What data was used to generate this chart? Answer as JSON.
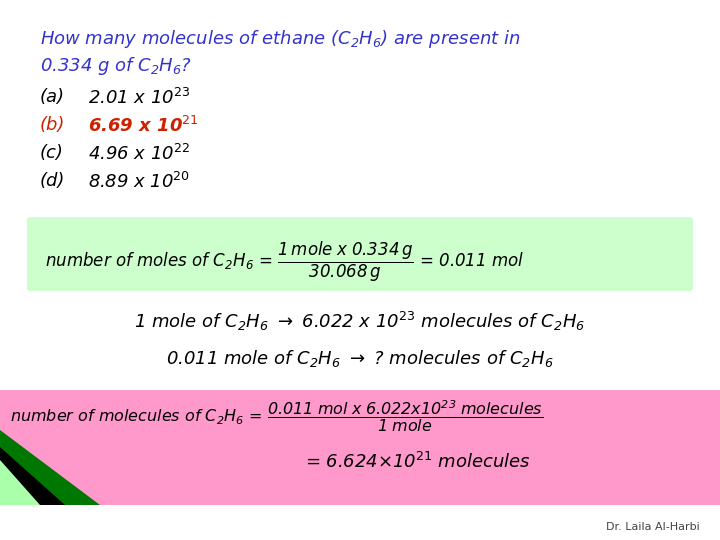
{
  "bg_color": "#ffffff",
  "title_color": "#3333cc",
  "black": "#000000",
  "red": "#cc2200",
  "green_box_color": "#ccffcc",
  "pink_box_color": "#ff99cc",
  "footer_text": "Dr. Laila Al-Harbi",
  "footer_color": "#444444",
  "line1": "How many molecules of ethane (C",
  "line2": "0.334 g of C",
  "choices": [
    "(a)   2.01 x 10",
    "(b)   6.69 x 10",
    "(c)   4.96 x 10",
    "(d)   8.89 x 10"
  ],
  "choice_exps": [
    "23",
    "21",
    "22",
    "20"
  ]
}
